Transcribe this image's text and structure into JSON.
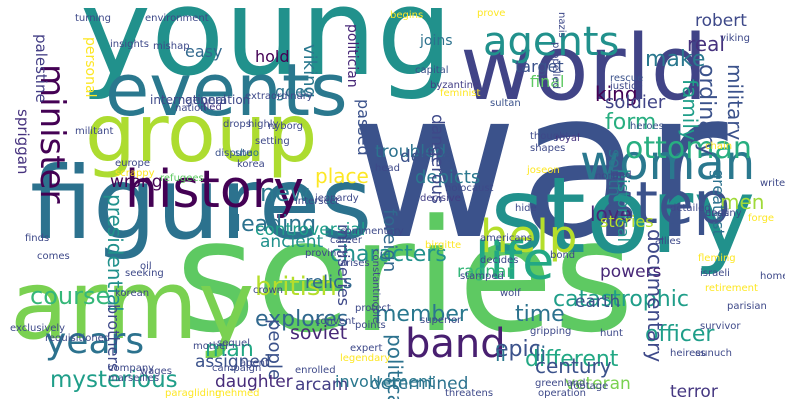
{
  "words": [
    {
      "text": "war",
      "color": "#3b528b",
      "rot": 0
    },
    {
      "text": "series",
      "color": "#5ec962",
      "rot": 0
    },
    {
      "text": "young",
      "color": "#21918c",
      "rot": 0
    },
    {
      "text": "story",
      "color": "#21918c",
      "rot": 0
    },
    {
      "text": "figures",
      "color": "#2c728e",
      "rot": 0
    },
    {
      "text": "army",
      "color": "#7ad151",
      "rot": 0
    },
    {
      "text": "world",
      "color": "#414487",
      "rot": 0
    },
    {
      "text": "group",
      "color": "#addc30",
      "rot": 0
    },
    {
      "text": "events",
      "color": "#2a788e",
      "rot": 0
    },
    {
      "text": "history",
      "color": "#440154",
      "rot": 0
    },
    {
      "text": "woman",
      "color": "#2a788e",
      "rot": 0
    },
    {
      "text": "agents",
      "color": "#21918c",
      "rot": 0
    },
    {
      "text": "step",
      "color": "#3b528b",
      "rot": 0
    },
    {
      "text": "help",
      "color": "#b5de2b",
      "rot": 0
    },
    {
      "text": "life",
      "color": "#22a884",
      "rot": 0
    },
    {
      "text": "band",
      "color": "#481f70",
      "rot": 0
    },
    {
      "text": "minister",
      "color": "#440154",
      "rot": 90
    },
    {
      "text": "years",
      "color": "#2c728e",
      "rot": 0
    },
    {
      "text": "mysterious",
      "color": "#1f9e89",
      "rot": 0
    },
    {
      "text": "ottoman",
      "color": "#28ae80",
      "rot": 0
    },
    {
      "text": "british",
      "color": "#b5de2b",
      "rot": 0
    },
    {
      "text": "leading",
      "color": "#2c728e",
      "rot": 0
    },
    {
      "text": "form",
      "color": "#28ae80",
      "rot": 0
    },
    {
      "text": "make",
      "color": "#2a788e",
      "rot": 0
    },
    {
      "text": "new",
      "color": "#2a788e",
      "rot": 0
    },
    {
      "text": "course",
      "color": "#35b779",
      "rot": 0
    },
    {
      "text": "explores",
      "color": "#31688e",
      "rot": 0
    },
    {
      "text": "time",
      "color": "#2c728e",
      "rot": 0
    },
    {
      "text": "member",
      "color": "#2a788e",
      "rot": 0
    },
    {
      "text": "catastrophic",
      "color": "#1f9e89",
      "rot": 0
    },
    {
      "text": "epic",
      "color": "#3b528b",
      "rot": 0
    },
    {
      "text": "king",
      "color": "#440154",
      "rot": 0
    },
    {
      "text": "soldier",
      "color": "#414487",
      "rot": 0
    },
    {
      "text": "officer",
      "color": "#1f9e89",
      "rot": 0
    },
    {
      "text": "place",
      "color": "#fde725",
      "rot": 0
    },
    {
      "text": "viking",
      "color": "#2a788e",
      "rot": 90
    },
    {
      "text": "presidential",
      "color": "#21918c",
      "rot": 90
    },
    {
      "text": "ordinary",
      "color": "#3b528b",
      "rot": 90
    },
    {
      "text": "military",
      "color": "#3b528b",
      "rot": 90
    },
    {
      "text": "real",
      "color": "#46327e",
      "rot": 0
    },
    {
      "text": "family",
      "color": "#1f9e89",
      "rot": 90
    },
    {
      "text": "robert",
      "color": "#3e4989",
      "rot": 0
    },
    {
      "text": "men",
      "color": "#a0da39",
      "rot": 0
    },
    {
      "text": "love",
      "color": "#482878",
      "rot": 0
    },
    {
      "text": "stories",
      "color": "#b5de2b",
      "rot": 0
    },
    {
      "text": "different",
      "color": "#22a884",
      "rot": 0
    },
    {
      "text": "characters",
      "color": "#21918c",
      "rot": 0
    },
    {
      "text": "depicts",
      "color": "#2a788e",
      "rot": 0
    },
    {
      "text": "relics",
      "color": "#31688e",
      "rot": 0
    },
    {
      "text": "people",
      "color": "#3b528b",
      "rot": 90
    },
    {
      "text": "man",
      "color": "#22a884",
      "rot": 0
    },
    {
      "text": "assigned",
      "color": "#3b528b",
      "rot": 0
    },
    {
      "text": "soviet",
      "color": "#482878",
      "rot": 0
    },
    {
      "text": "century",
      "color": "#3b528b",
      "rot": 0
    },
    {
      "text": "documentary",
      "color": "#3e4989",
      "rot": 90
    },
    {
      "text": "political",
      "color": "#2c728e",
      "rot": 90
    },
    {
      "text": "foreign",
      "color": "#31688e",
      "rot": 90
    },
    {
      "text": "arcam",
      "color": "#433e85",
      "rot": 0
    },
    {
      "text": "determined",
      "color": "#2c728e",
      "rot": 0
    },
    {
      "text": "veteran",
      "color": "#7ad151",
      "rot": 0
    },
    {
      "text": "terror",
      "color": "#453781",
      "rot": 0
    },
    {
      "text": "powers",
      "color": "#482878",
      "rot": 0
    },
    {
      "text": "earth",
      "color": "#3b528b",
      "rot": 0
    },
    {
      "text": "li",
      "color": "#31688e",
      "rot": 0
    },
    {
      "text": "ii",
      "color": "#2a788e",
      "rot": 0
    },
    {
      "text": "ragnar",
      "color": "#35b779",
      "rot": 0
    },
    {
      "text": "daughter",
      "color": "#472c7a",
      "rot": 0
    },
    {
      "text": "controversial",
      "color": "#1f9e89",
      "rot": 0
    },
    {
      "text": "ancient",
      "color": "#21918c",
      "rot": 0
    },
    {
      "text": "wrong",
      "color": "#440154",
      "rot": 0
    },
    {
      "text": "troubled",
      "color": "#2c728e",
      "rot": 0
    },
    {
      "text": "desire",
      "color": "#3b528b",
      "rot": 0
    },
    {
      "text": "dangerous",
      "color": "#3e4989",
      "rot": 90
    },
    {
      "text": "south",
      "color": "#2c728e",
      "rot": 90
    },
    {
      "text": "historical",
      "color": "#21918c",
      "rot": 90
    },
    {
      "text": "greatest",
      "color": "#2c728e",
      "rot": 90
    },
    {
      "text": "passed",
      "color": "#3b528b",
      "rot": 90
    },
    {
      "text": "involvement",
      "color": "#2a788e",
      "rot": 0
    },
    {
      "text": "target",
      "color": "#3b528b",
      "rot": 0
    },
    {
      "text": "goes",
      "color": "#2c728e",
      "rot": 0
    },
    {
      "text": "final",
      "color": "#5ec962",
      "rot": 0
    },
    {
      "text": "miniseries",
      "color": "#3e4989",
      "rot": 90
    },
    {
      "text": "brothers",
      "color": "#3e4989",
      "rot": 90
    },
    {
      "text": "palestine",
      "color": "#433e85",
      "rot": 90
    },
    {
      "text": "spriggan",
      "color": "#46327e",
      "rot": 90
    },
    {
      "text": "easy",
      "color": "#31688e",
      "rot": 0
    },
    {
      "text": "hold",
      "color": "#440154",
      "rot": 0
    },
    {
      "text": "personal",
      "color": "#fde725",
      "rot": 90
    },
    {
      "text": "politician",
      "color": "#482878",
      "rot": 90
    },
    {
      "text": "joins",
      "color": "#2c728e",
      "rot": 0
    },
    {
      "text": "international",
      "color": "#3e4989",
      "rot": 0
    },
    {
      "text": "generation",
      "color": "#3e4989",
      "rot": 0
    },
    {
      "text": "nation",
      "color": "#3e4989",
      "rot": 0
    },
    {
      "text": "fled",
      "color": "#443a83",
      "rot": 0
    },
    {
      "text": "capital",
      "color": "#3b528b",
      "rot": 0
    },
    {
      "text": "viking",
      "color": "#3e4989",
      "rot": 0
    },
    {
      "text": "rescue",
      "color": "#3b528b",
      "rot": 0
    },
    {
      "text": "justice",
      "color": "#3e4989",
      "rot": 0
    },
    {
      "text": "feminist",
      "color": "#fde725",
      "rot": 0
    },
    {
      "text": "sultan",
      "color": "#3b528b",
      "rot": 0
    },
    {
      "text": "byzantine",
      "color": "#433e85",
      "rot": 0
    },
    {
      "text": "royal",
      "color": "#46327e",
      "rot": 0
    },
    {
      "text": "heroes",
      "color": "#3b528b",
      "rot": 0
    },
    {
      "text": "chain",
      "color": "#fde725",
      "rot": 0
    },
    {
      "text": "thought",
      "color": "#3e4989",
      "rot": 0
    },
    {
      "text": "shuo",
      "color": "#2c728e",
      "rot": 0
    },
    {
      "text": "korea",
      "color": "#3e4989",
      "rot": 0
    },
    {
      "text": "setting",
      "color": "#3e4989",
      "rot": 0
    },
    {
      "text": "scrappy",
      "color": "#fde725",
      "rot": 0
    },
    {
      "text": "europe",
      "color": "#3e4989",
      "rot": 0
    },
    {
      "text": "militant",
      "color": "#3e4989",
      "rot": 0
    },
    {
      "text": "refugees",
      "color": "#5ec962",
      "rot": 0
    },
    {
      "text": "shapes",
      "color": "#3e4989",
      "rot": 0
    },
    {
      "text": "joseon",
      "color": "#fde725",
      "rot": 0
    },
    {
      "text": "dispute",
      "color": "#3b528b",
      "rot": 0
    },
    {
      "text": "head",
      "color": "#3e4989",
      "rot": 0
    },
    {
      "text": "holocaust",
      "color": "#3e4989",
      "rot": 0
    },
    {
      "text": "land",
      "color": "#3e4989",
      "rot": 0
    },
    {
      "text": "north",
      "color": "#3e4989",
      "rot": 0
    },
    {
      "text": "destiny",
      "color": "#3e4989",
      "rot": 0
    },
    {
      "text": "writers",
      "color": "#3e4989",
      "rot": 0
    },
    {
      "text": "detailed",
      "color": "#3e4989",
      "rot": 0
    },
    {
      "text": "hide",
      "color": "#3e4989",
      "rot": 0
    },
    {
      "text": "decisive",
      "color": "#433e85",
      "rot": 0
    },
    {
      "text": "americans",
      "color": "#3e4989",
      "rot": 0
    },
    {
      "text": "jeopardy",
      "color": "#3e4989",
      "rot": 0
    },
    {
      "text": "intersect",
      "color": "#3e4989",
      "rot": 0
    },
    {
      "text": "finds",
      "color": "#3e4989",
      "rot": 0
    },
    {
      "text": "comes",
      "color": "#3e4989",
      "rot": 0
    },
    {
      "text": "korean",
      "color": "#3e4989",
      "rot": 0
    },
    {
      "text": "oil",
      "color": "#3e4989",
      "rot": 0
    },
    {
      "text": "seeking",
      "color": "#3e4989",
      "rot": 0
    },
    {
      "text": "commentary",
      "color": "#3e4989",
      "rot": 0
    },
    {
      "text": "career",
      "color": "#3e4989",
      "rot": 0
    },
    {
      "text": "province",
      "color": "#3e4989",
      "rot": 0
    },
    {
      "text": "birgitte",
      "color": "#fde725",
      "rot": 0
    },
    {
      "text": "allies",
      "color": "#3e4989",
      "rot": 0
    },
    {
      "text": "ends",
      "color": "#3e4989",
      "rot": 0
    },
    {
      "text": "forge",
      "color": "#fde725",
      "rot": 0
    },
    {
      "text": "fleming",
      "color": "#fde725",
      "rot": 0
    },
    {
      "text": "israeli",
      "color": "#3e4989",
      "rot": 0
    },
    {
      "text": "retirement",
      "color": "#fde725",
      "rot": 0
    },
    {
      "text": "survivor",
      "color": "#3e4989",
      "rot": 0
    },
    {
      "text": "eunuch",
      "color": "#3e4989",
      "rot": 0
    },
    {
      "text": "heiress",
      "color": "#3e4989",
      "rot": 0
    },
    {
      "text": "footage",
      "color": "#3e4989",
      "rot": 0
    },
    {
      "text": "threatens",
      "color": "#3e4989",
      "rot": 0
    },
    {
      "text": "hunt",
      "color": "#3e4989",
      "rot": 0
    },
    {
      "text": "gripping",
      "color": "#3e4989",
      "rot": 0
    },
    {
      "text": "greenland",
      "color": "#3e4989",
      "rot": 0
    },
    {
      "text": "operation",
      "color": "#3e4989",
      "rot": 0
    },
    {
      "text": "superior",
      "color": "#3e4989",
      "rot": 0
    },
    {
      "text": "decides",
      "color": "#3e4989",
      "rot": 0
    },
    {
      "text": "bond",
      "color": "#3e4989",
      "rot": 0
    },
    {
      "text": "protect",
      "color": "#3e4989",
      "rot": 0
    },
    {
      "text": "points",
      "color": "#3e4989",
      "rot": 0
    },
    {
      "text": "convent",
      "color": "#3e4989",
      "rot": 0
    },
    {
      "text": "expert",
      "color": "#3e4989",
      "rot": 0
    },
    {
      "text": "legendary",
      "color": "#fde725",
      "rot": 0
    },
    {
      "text": "enrolled",
      "color": "#3e4989",
      "rot": 0
    },
    {
      "text": "wages",
      "color": "#3e4989",
      "rot": 0
    },
    {
      "text": "campaign",
      "color": "#3e4989",
      "rot": 0
    },
    {
      "text": "agent",
      "color": "#3e4989",
      "rot": 0
    },
    {
      "text": "sequel",
      "color": "#3e4989",
      "rot": 0
    },
    {
      "text": "company",
      "color": "#3e4989",
      "rot": 0
    },
    {
      "text": "marseilles",
      "color": "#3e4989",
      "rot": 0
    },
    {
      "text": "mother",
      "color": "#3e4989",
      "rot": 0
    },
    {
      "text": "crown",
      "color": "#3e4989",
      "rot": 0
    },
    {
      "text": "paragliding",
      "color": "#fde725",
      "rot": 0
    },
    {
      "text": "mehmed",
      "color": "#fde725",
      "rot": 0
    },
    {
      "text": "exclusively",
      "color": "#3e4989",
      "rot": 0
    },
    {
      "text": "requisitioned",
      "color": "#3e4989",
      "rot": 0
    },
    {
      "text": "environment",
      "color": "#3e4989",
      "rot": 0
    },
    {
      "text": "turning",
      "color": "#3e4989",
      "rot": 0
    },
    {
      "text": "mishap",
      "color": "#3e4989",
      "rot": 0
    },
    {
      "text": "insights",
      "color": "#3e4989",
      "rot": 0
    },
    {
      "text": "begins",
      "color": "#fde725",
      "rot": 0
    },
    {
      "text": "prove",
      "color": "#fde725",
      "rot": 0
    },
    {
      "text": "nazis",
      "color": "#3e4989",
      "rot": 90
    },
    {
      "text": "propelled",
      "color": "#3e4989",
      "rot": 90
    },
    {
      "text": "extraordinary",
      "color": "#3e4989",
      "rot": 0
    },
    {
      "text": "drops",
      "color": "#3e4989",
      "rot": 0
    },
    {
      "text": "highly",
      "color": "#3e4989",
      "rot": 0
    },
    {
      "text": "nyborg",
      "color": "#3e4989",
      "rot": 0
    },
    {
      "text": "homelands",
      "color": "#3e4989",
      "rot": 0
    },
    {
      "text": "parisian",
      "color": "#3e4989",
      "rot": 0
    },
    {
      "text": "arises",
      "color": "#3e4989",
      "rot": 0
    },
    {
      "text": "constantinople",
      "color": "#3e4989",
      "rot": 90
    },
    {
      "text": "stamped",
      "color": "#3e4989",
      "rot": 0
    },
    {
      "text": "wolf",
      "color": "#3e4989",
      "rot": 0
    }
  ]
}
